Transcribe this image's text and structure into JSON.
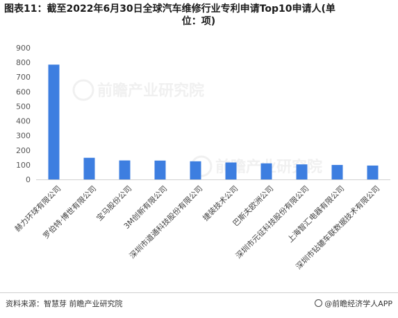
{
  "title": "图表11：截至2022年6月30日全球汽车维修行业专利申请Top10申请人(单位：项)",
  "title_line1": "图表11：截至2022年6月30日全球汽车维修行业专利申请Top10申请人(单",
  "title_line2": "位：项)",
  "source": "资料来源：智慧芽 前瞻产业研究院",
  "credit": "@前瞻经济学人APP",
  "bar_color": "#3d7ee0",
  "chart_data": {
    "type": "bar",
    "title": "图表11：截至2022年6月30日全球汽车维修行业专利申请Top10申请人(单位：项)",
    "categories": [
      "赫力环球有限公司",
      "罗伯特·博世有限公司",
      "宝马股份公司",
      "3M创新有限公司",
      "深圳市道通科技股份有限公司",
      "捷装技术公司",
      "巴斯夫欧洲公司",
      "深圳市元征科技股份有限公司",
      "上海智汇电器有限公司",
      "深圳市钻辘车联数据技术有限公司"
    ],
    "values": [
      785,
      148,
      130,
      129,
      124,
      116,
      110,
      103,
      99,
      95
    ],
    "ylim": [
      0,
      900
    ],
    "yticks": [
      0,
      100,
      200,
      300,
      400,
      500,
      600,
      700,
      800,
      900
    ],
    "xlabel": "",
    "ylabel": "",
    "grid": false
  }
}
